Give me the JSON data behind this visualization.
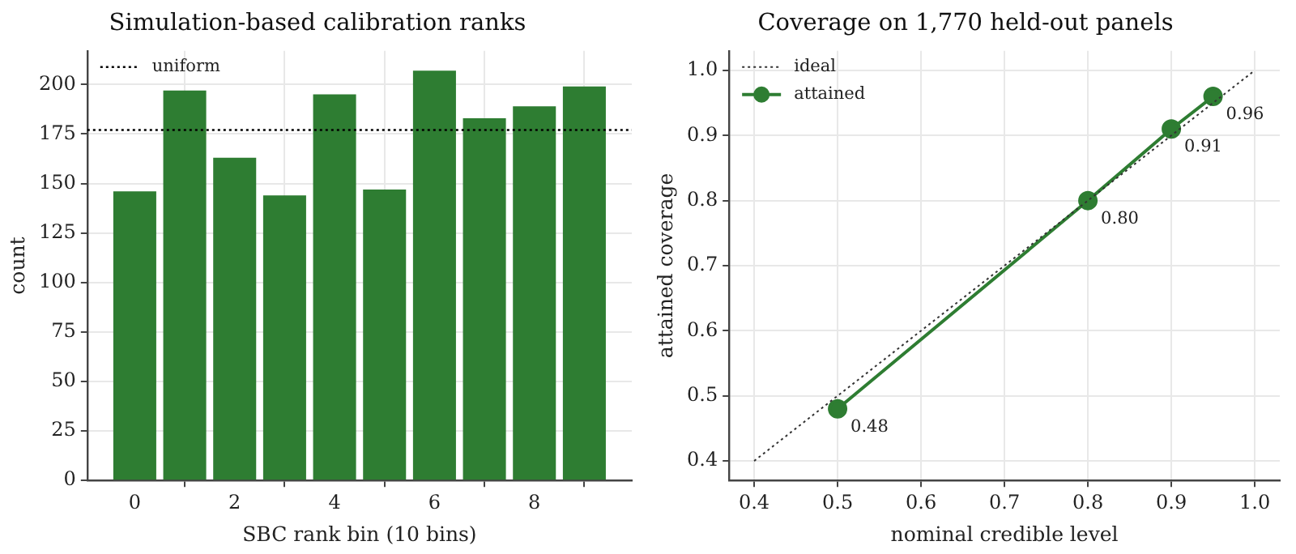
{
  "chart_data": [
    {
      "type": "bar",
      "title": "Simulation-based calibration ranks",
      "xlabel": "SBC rank bin (10 bins)",
      "ylabel": "count",
      "x": [
        0,
        1,
        2,
        3,
        4,
        5,
        6,
        7,
        8,
        9
      ],
      "values": [
        146,
        197,
        163,
        144,
        195,
        147,
        207,
        183,
        189,
        199
      ],
      "color": "#2e7d32",
      "xlim": [
        -0.95,
        9.95
      ],
      "xticks": [
        0,
        2,
        4,
        6,
        8
      ],
      "ylim": [
        0,
        217
      ],
      "yticks": [
        0,
        25,
        50,
        75,
        100,
        125,
        150,
        175,
        200
      ],
      "ref_lines": [
        {
          "axis": "y",
          "value": 177,
          "label": "uniform",
          "color": "#000000",
          "line_style": "dotted"
        }
      ],
      "grid": true,
      "legend": "top left"
    },
    {
      "type": "line",
      "title": "Coverage on 1,770 held-out panels",
      "xlabel": "nominal credible level",
      "ylabel": "attained coverage",
      "series": [
        {
          "name": "ideal",
          "color": "#333333",
          "x": [
            0.4,
            1.0
          ],
          "values": [
            0.4,
            1.0
          ],
          "line_style": "dotted",
          "marker": "none"
        },
        {
          "name": "attained",
          "color": "#2e7d32",
          "x": [
            0.5,
            0.8,
            0.9,
            0.95
          ],
          "values": [
            0.48,
            0.8,
            0.91,
            0.96
          ],
          "marker": "circle",
          "value_labels": [
            "0.48",
            "0.80",
            "0.91",
            "0.96"
          ]
        }
      ],
      "xlim": [
        0.37,
        1.03
      ],
      "xticks": [
        0.4,
        0.5,
        0.6,
        0.7,
        0.8,
        0.9,
        {
          "value": 1.0,
          "label": "1.0"
        }
      ],
      "ylim": [
        0.37,
        1.03
      ],
      "yticks": [
        0.4,
        0.5,
        0.6,
        0.7,
        0.8,
        0.9,
        {
          "value": 1.0,
          "label": "1.0"
        }
      ],
      "grid": true,
      "legend": "top left"
    }
  ]
}
